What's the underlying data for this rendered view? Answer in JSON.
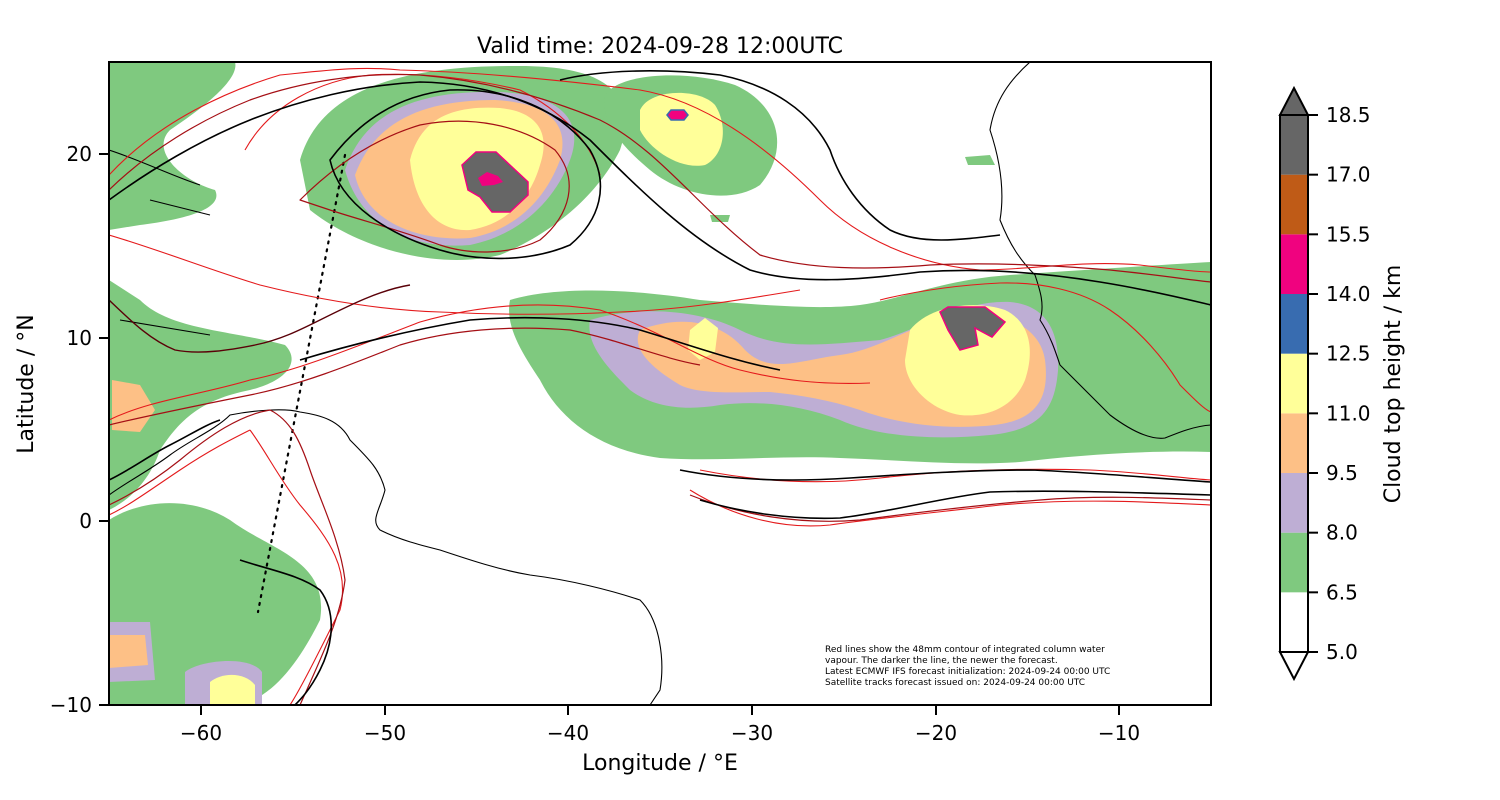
{
  "title": "Valid time: 2024-09-28 12:00UTC",
  "xlabel": "Longitude / °E",
  "ylabel": "Latitude / °N",
  "x_ticks": [
    "−60",
    "−50",
    "−40",
    "−30",
    "−20",
    "−10"
  ],
  "y_ticks": [
    "20",
    "10",
    "0",
    "−10"
  ],
  "colorbar": {
    "label": "Cloud top height / km",
    "ticks": [
      "5.0",
      "6.5",
      "8.0",
      "9.5",
      "11.0",
      "12.5",
      "14.0",
      "15.5",
      "17.0",
      "18.5"
    ],
    "colors": [
      "#ffffff",
      "#7fc97f",
      "#beaed4",
      "#fdc086",
      "#ffff99",
      "#386cb0",
      "#f0027f",
      "#bf5b17",
      "#666666"
    ]
  },
  "note": [
    "Red lines show the 48mm contour of integrated column water",
    "vapour. The darker the line, the newer the forecast.",
    "Latest ECMWF IFS forecast initialization: 2024-09-24 00:00 UTC",
    "Satellite tracks forecast issued on: 2024-09-24 00:00 UTC"
  ],
  "chart_data": {
    "type": "heatmap",
    "title": "Valid time: 2024-09-28 12:00UTC",
    "xlabel": "Longitude / °E",
    "ylabel": "Latitude / °N",
    "xlim": [
      -65,
      -5
    ],
    "ylim": [
      -10,
      25
    ],
    "x_ticks": [
      -60,
      -50,
      -40,
      -30,
      -20,
      -10
    ],
    "y_ticks": [
      -10,
      0,
      10,
      20
    ],
    "colorbar_levels_km": [
      5.0,
      6.5,
      8.0,
      9.5,
      11.0,
      12.5,
      14.0,
      15.5,
      17.0,
      18.5
    ],
    "colorbar_extend": "both",
    "satellite_track": [
      [
        -52.0,
        20.0
      ],
      [
        -57.0,
        -5.0
      ]
    ],
    "cloud_cells": [
      {
        "lon": -44.5,
        "lat": 19.0,
        "rx": 7.5,
        "ry": 6.0,
        "max_height_km": 18.5
      },
      {
        "lon": -34.0,
        "lat": 22.5,
        "rx": 3.0,
        "ry": 3.0,
        "max_height_km": 15.0
      },
      {
        "lon": -18.0,
        "lat": 9.0,
        "rx": 6.0,
        "ry": 5.0,
        "max_height_km": 18.0
      },
      {
        "lon": -29.0,
        "lat": 7.0,
        "rx": 9.0,
        "ry": 4.0,
        "max_height_km": 10.5
      },
      {
        "lon": -39.0,
        "lat": 10.0,
        "rx": 4.0,
        "ry": 3.5,
        "max_height_km": 12.0
      },
      {
        "lon": -62.0,
        "lat": 10.0,
        "rx": 3.0,
        "ry": 6.0,
        "max_height_km": 10.0
      },
      {
        "lon": -61.0,
        "lat": -8.0,
        "rx": 4.0,
        "ry": 5.0,
        "max_height_km": 10.0
      }
    ]
  }
}
